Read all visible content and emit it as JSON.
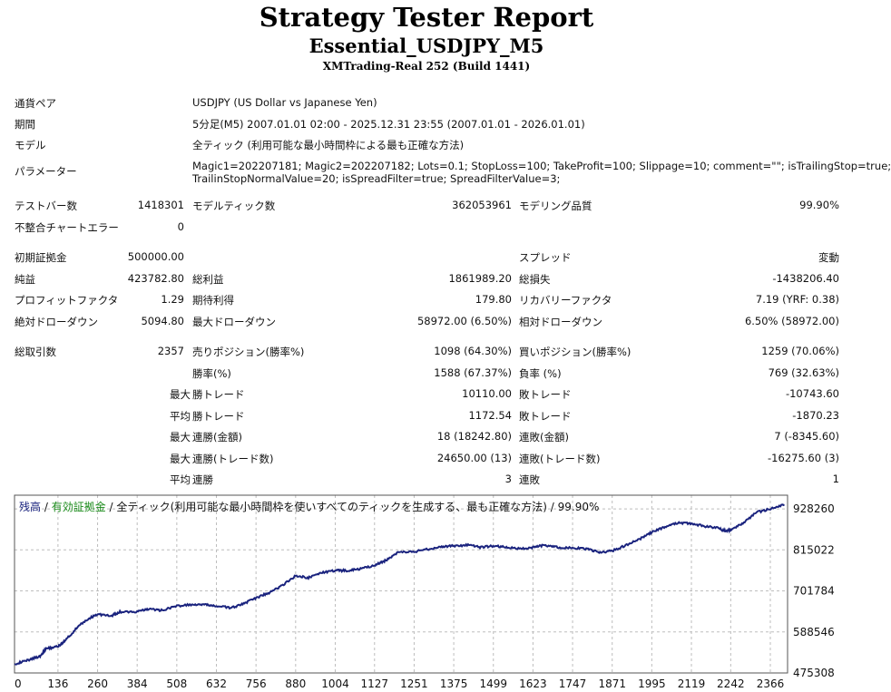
{
  "header": {
    "title": "Strategy Tester Report",
    "expert": "Essential_USDJPY_M5",
    "server": "XMTrading-Real 252 (Build 1441)"
  },
  "info": {
    "symbol_label": "通貨ペア",
    "symbol_value": "USDJPY (US Dollar vs Japanese Yen)",
    "period_label": "期間",
    "period_value": "5分足(M5) 2007.01.01 02:00 - 2025.12.31 23:55 (2007.01.01 - 2026.01.01)",
    "model_label": "モデル",
    "model_value": "全ティック (利用可能な最小時間枠による最も正確な方法)",
    "params_label": "パラメーター",
    "params_line1": "Magic1=202207181; Magic2=202207182; Lots=0.1; StopLoss=100; TakeProfit=100; Slippage=10; comment=\"\"; isTrailingStop=true;",
    "params_line2": "TrailinStopNormalValue=20; isSpreadFilter=true; SpreadFilterValue=3;"
  },
  "stats": {
    "bars_label": "テストバー数",
    "bars_value": "1418301",
    "ticks_label": "モデルティック数",
    "ticks_value": "362053961",
    "quality_label": "モデリング品質",
    "quality_value": "99.90%",
    "mismatch_label": "不整合チャートエラー",
    "mismatch_value": "0",
    "deposit_label": "初期証拠金",
    "deposit_value": "500000.00",
    "spread_label": "スプレッド",
    "spread_value": "変動",
    "net_label": "純益",
    "net_value": "423782.80",
    "gross_profit_label": "総利益",
    "gross_profit_value": "1861989.20",
    "gross_loss_label": "総損失",
    "gross_loss_value": "-1438206.40",
    "pf_label": "プロフィットファクタ",
    "pf_value": "1.29",
    "payoff_label": "期待利得",
    "payoff_value": "179.80",
    "recovery_label": "リカバリーファクタ",
    "recovery_value": "7.19 (YRF: 0.38)",
    "abs_dd_label": "絶対ドローダウン",
    "abs_dd_value": "5094.80",
    "max_dd_label": "最大ドローダウン",
    "max_dd_value": "58972.00 (6.50%)",
    "rel_dd_label": "相対ドローダウン",
    "rel_dd_value": "6.50% (58972.00)",
    "trades_label": "総取引数",
    "trades_value": "2357",
    "short_label": "売りポジション(勝率%)",
    "short_value": "1098 (64.30%)",
    "long_label": "買いポジション(勝率%)",
    "long_value": "1259 (70.06%)",
    "win_rate_label": "勝率(%)",
    "win_rate_value": "1588 (67.37%)",
    "loss_rate_label": "負率 (%)",
    "loss_rate_value": "769 (32.63%)",
    "max_label": "最大",
    "avg_label": "平均",
    "largest_win_label": "勝トレード",
    "largest_win_value": "10110.00",
    "largest_loss_label": "敗トレード",
    "largest_loss_value": "-10743.60",
    "avg_win_label": "勝トレード",
    "avg_win_value": "1172.54",
    "avg_loss_label": "敗トレード",
    "avg_loss_value": "-1870.23",
    "max_cons_win_amt_label": "連勝(金額)",
    "max_cons_win_amt_value": "18 (18242.80)",
    "max_cons_loss_amt_label": "連敗(金額)",
    "max_cons_loss_amt_value": "7 (-8345.60)",
    "max_cons_win_trd_label": "連勝(トレード数)",
    "max_cons_win_trd_value": "24650.00 (13)",
    "max_cons_loss_trd_label": "連敗(トレード数)",
    "max_cons_loss_trd_value": "-16275.60 (3)",
    "avg_cons_win_label": "連勝",
    "avg_cons_win_value": "3",
    "avg_cons_loss_label": "連敗",
    "avg_cons_loss_value": "1"
  },
  "chart_data": {
    "type": "line",
    "legend_balance": "残高",
    "legend_sep1": " / ",
    "legend_equity": "有効証拠金",
    "legend_sep2": " / ",
    "legend_model": "全ティック(利用可能な最小時間枠を使いすべてのティックを生成する、最も正確な方法) / 99.90%",
    "line_color": "#1a237e",
    "equity_color": "#1a8a1a",
    "x_ticks": [
      0,
      136,
      260,
      384,
      508,
      632,
      756,
      880,
      1004,
      1127,
      1251,
      1375,
      1499,
      1623,
      1747,
      1871,
      1995,
      2119,
      2242,
      2366
    ],
    "y_ticks": [
      475308,
      588546,
      701784,
      815022,
      928260
    ],
    "xlim": [
      0,
      2420
    ],
    "ylim": [
      475308,
      966000
    ],
    "series": [
      {
        "x": [
          0,
          40,
          80,
          100,
          136,
          160,
          200,
          230,
          260,
          300,
          330,
          384,
          420,
          460,
          508,
          560,
          600,
          632,
          680,
          720,
          756,
          800,
          840,
          880,
          920,
          960,
          1004,
          1040,
          1080,
          1127,
          1160,
          1200,
          1251,
          1300,
          1340,
          1375,
          1420,
          1460,
          1499,
          1540,
          1580,
          1623,
          1660,
          1700,
          1747,
          1790,
          1830,
          1871,
          1920,
          1960,
          1995,
          2040,
          2080,
          2119,
          2160,
          2200,
          2220,
          2242,
          2280,
          2320,
          2366,
          2410
        ],
        "y": [
          500000,
          510000,
          522000,
          543000,
          548000,
          566000,
          604000,
          624000,
          638000,
          632000,
          644000,
          644000,
          652000,
          648000,
          660000,
          664000,
          663000,
          660000,
          655000,
          668000,
          682000,
          698000,
          718000,
          744000,
          738000,
          752000,
          758000,
          758000,
          762000,
          772000,
          785000,
          808000,
          810000,
          818000,
          824000,
          826000,
          828000,
          822000,
          826000,
          822000,
          818000,
          822000,
          828000,
          822000,
          820000,
          818000,
          808000,
          812000,
          830000,
          846000,
          864000,
          880000,
          890000,
          888000,
          880000,
          876000,
          868000,
          870000,
          888000,
          918000,
          928000,
          940000
        ]
      }
    ]
  }
}
